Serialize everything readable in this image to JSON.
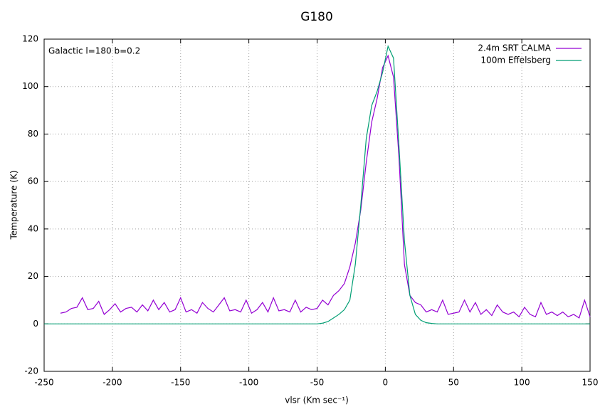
{
  "chart_data": {
    "type": "line",
    "title": "G180",
    "annotation": "Galactic l=180 b=0.2",
    "x_label": "vlsr (Km sec⁻¹)",
    "y_label": "Temperature (K)",
    "xlim": [
      -250,
      150
    ],
    "xticks": [
      -250,
      -200,
      -150,
      -100,
      -50,
      0,
      50,
      100,
      150
    ],
    "ylim": [
      -20,
      120
    ],
    "yticks": [
      -20,
      0,
      20,
      40,
      60,
      80,
      100,
      120
    ],
    "grid": true,
    "legend": "top-right",
    "x": [
      -250,
      -246,
      -242,
      -238,
      -234,
      -230,
      -226,
      -222,
      -218,
      -214,
      -210,
      -206,
      -202,
      -198,
      -194,
      -190,
      -186,
      -182,
      -178,
      -174,
      -170,
      -166,
      -162,
      -158,
      -154,
      -150,
      -146,
      -142,
      -138,
      -134,
      -130,
      -126,
      -122,
      -118,
      -114,
      -110,
      -106,
      -102,
      -98,
      -94,
      -90,
      -86,
      -82,
      -78,
      -74,
      -70,
      -66,
      -62,
      -58,
      -54,
      -50,
      -46,
      -42,
      -38,
      -34,
      -30,
      -26,
      -22,
      -18,
      -14,
      -10,
      -6,
      -2,
      2,
      6,
      10,
      14,
      18,
      22,
      26,
      30,
      34,
      38,
      42,
      46,
      50,
      54,
      58,
      62,
      66,
      70,
      74,
      78,
      82,
      86,
      90,
      94,
      98,
      102,
      106,
      110,
      114,
      118,
      122,
      126,
      130,
      134,
      138,
      142,
      146,
      150
    ],
    "series": [
      {
        "name": "2.4m SRT CALMA",
        "color": "#9400d3",
        "values": [
          null,
          null,
          null,
          4.5,
          5,
          6.5,
          7,
          11,
          6,
          6.5,
          9.5,
          4,
          6,
          8.5,
          5,
          6.5,
          7,
          5,
          8,
          5.5,
          10,
          6,
          9,
          5,
          6,
          11,
          5,
          6,
          4.5,
          9,
          6.5,
          5,
          8,
          11,
          5.5,
          6,
          5,
          10,
          4.5,
          6,
          9,
          5,
          11,
          5.5,
          6,
          5,
          10,
          5,
          7,
          6,
          6.5,
          10,
          8,
          12,
          14,
          17,
          24,
          34,
          48,
          68,
          85,
          95,
          108,
          113,
          104,
          70,
          25,
          12,
          9,
          8,
          5,
          6,
          5,
          10,
          4,
          4.5,
          5,
          10,
          5,
          9,
          4,
          6,
          3.5,
          8,
          5,
          4,
          5,
          3,
          7,
          4,
          3,
          9,
          4,
          5,
          3.5,
          5,
          3,
          4,
          2.5,
          10,
          3
        ]
      },
      {
        "name": "100m Effelsberg",
        "color": "#009e73",
        "values": [
          0,
          0,
          0,
          0,
          0,
          0,
          0,
          0,
          0,
          0,
          0,
          0,
          0,
          0,
          0,
          0,
          0,
          0,
          0,
          0,
          0,
          0,
          0,
          0,
          0,
          0,
          0,
          0,
          0,
          0,
          0,
          0,
          0,
          0,
          0,
          0,
          0,
          0,
          0,
          0,
          0,
          0,
          0,
          0,
          0,
          0,
          0,
          0,
          0,
          0,
          0,
          0.3,
          1,
          2.5,
          4,
          6,
          10,
          25,
          50,
          78,
          92,
          98,
          106,
          117,
          112,
          75,
          35,
          12,
          4,
          1.5,
          0.5,
          0.2,
          0,
          0,
          0,
          0,
          0,
          0,
          0,
          0,
          0,
          0,
          0,
          0,
          0,
          0,
          0,
          0,
          0,
          0,
          0,
          0,
          0,
          0,
          0,
          0,
          0,
          0,
          0,
          0,
          0
        ]
      }
    ]
  }
}
